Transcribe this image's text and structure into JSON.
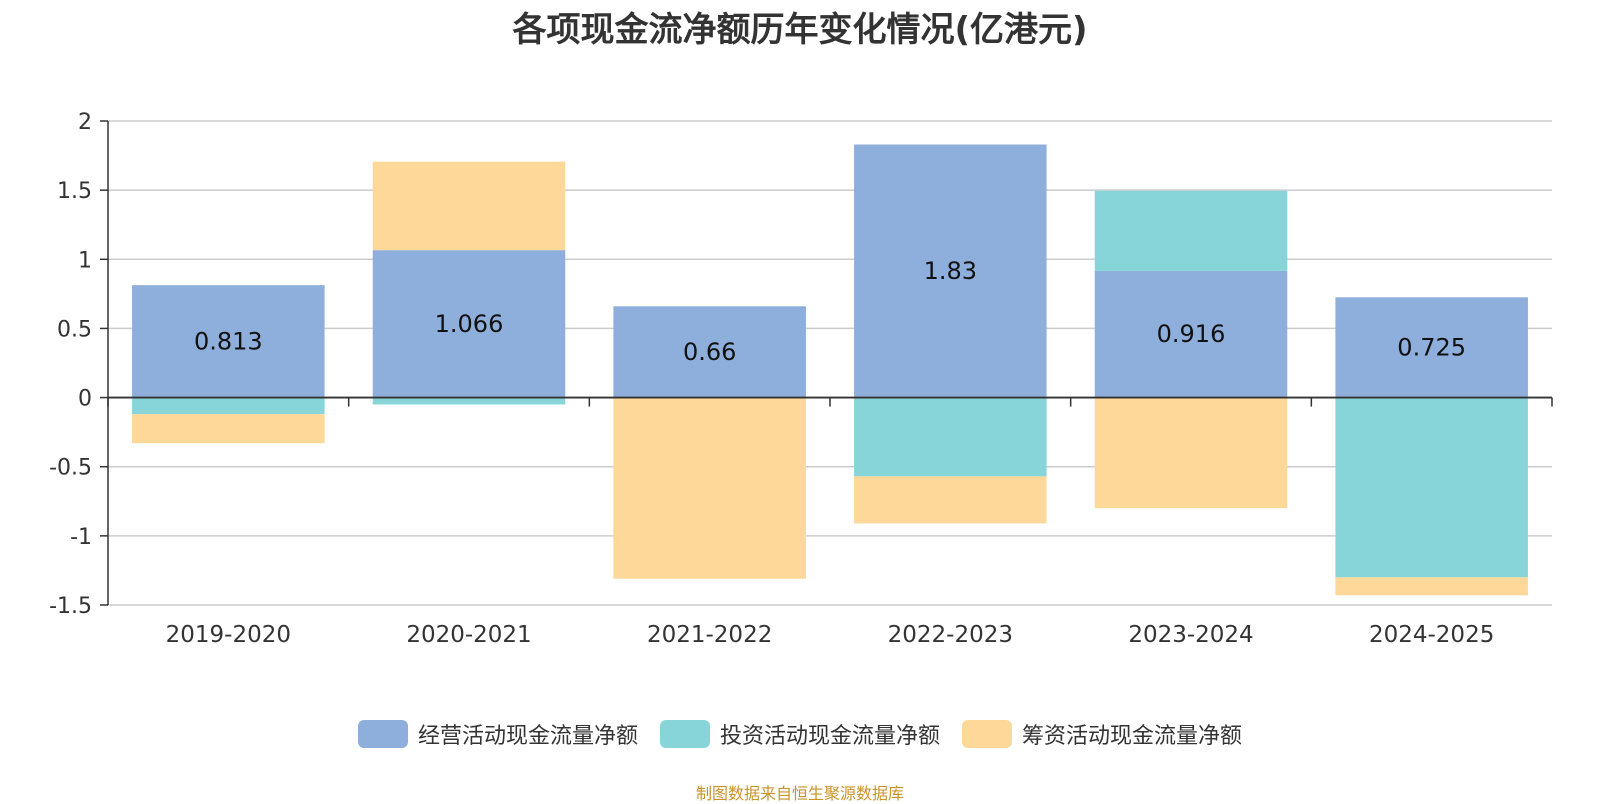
{
  "chart_data": {
    "type": "bar",
    "stacked": true,
    "title": "各项现金流净额历年变化情况(亿港元)",
    "categories": [
      "2019-2020",
      "2020-2021",
      "2021-2022",
      "2022-2023",
      "2023-2024",
      "2024-2025"
    ],
    "series": [
      {
        "name": "经营活动现金流量净额",
        "color": "#8eaedb",
        "values": [
          0.813,
          1.066,
          0.66,
          1.83,
          0.916,
          0.725
        ],
        "labels": [
          "0.813",
          "1.066",
          "0.66",
          "1.83",
          "0.916",
          "0.725"
        ]
      },
      {
        "name": "投资活动现金流量净额",
        "color": "#87d5d8",
        "values": [
          -0.12,
          -0.05,
          0,
          -0.57,
          0.58,
          -1.3
        ]
      },
      {
        "name": "筹资活动现金流量净额",
        "color": "#fed898",
        "values": [
          -0.21,
          0.64,
          -1.31,
          -0.34,
          -0.8,
          -0.13
        ]
      }
    ],
    "ylim": [
      -1.5,
      2
    ],
    "yticks": [
      "2",
      "1.5",
      "1",
      "0.5",
      "0",
      "-0.5",
      "-1",
      "-1.5"
    ],
    "grid": true,
    "legend_position": "bottom"
  },
  "footer": {
    "source": "制图数据来自恒生聚源数据库"
  }
}
